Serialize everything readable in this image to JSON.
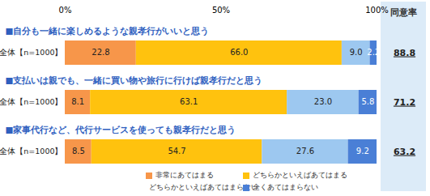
{
  "chart_data": {
    "type": "bar",
    "orientation": "horizontal",
    "stacked": true,
    "data_labels": true,
    "categories": [
      "■自分も一緒に楽しめるような親孝行がいいと思う",
      "■支払いは親でも、一緒に買い物や旅行に行けば親孝行だと思う",
      "■家事代行など、代行サービスを使っても親孝行だと思う"
    ],
    "row_label": "全体【n=1000】",
    "xlim": [
      0,
      100
    ],
    "xticks": [
      {
        "value": 0,
        "label": "0%"
      },
      {
        "value": 50,
        "label": "50%"
      },
      {
        "value": 100,
        "label": "100%"
      }
    ],
    "series": [
      {
        "name": "非常にあてはまる",
        "color": "#f7964a",
        "values": [
          22.8,
          8.1,
          8.5
        ],
        "value_labels": [
          "22.8",
          "8.1",
          "8.5"
        ]
      },
      {
        "name": "どちらかといえばあてはまる",
        "color": "#ffc20e",
        "values": [
          66.0,
          63.1,
          54.7
        ],
        "value_labels": [
          "66.0",
          "63.1",
          "54.7"
        ]
      },
      {
        "name": "どちらかといえばあてはまらない",
        "color": "#9dc8f0",
        "values": [
          9.0,
          23.0,
          27.6
        ],
        "value_labels": [
          "9.0",
          "23.0",
          "27.6"
        ]
      },
      {
        "name": "全くあてはまらない",
        "color": "#4a7fd6",
        "values": [
          2.2,
          5.8,
          9.2
        ],
        "value_labels": [
          "2.2",
          "5.8",
          "9.2"
        ]
      }
    ],
    "agreement_rate": {
      "title": "同意率",
      "values": [
        88.8,
        71.2,
        63.2
      ]
    }
  }
}
